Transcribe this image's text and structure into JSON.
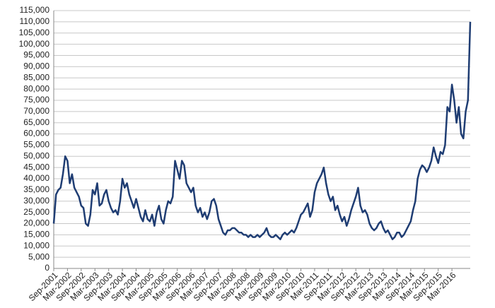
{
  "chart_data": {
    "type": "line",
    "categories": [
      "Sep-2001",
      null,
      null,
      null,
      null,
      null,
      "Mar-2002",
      null,
      null,
      null,
      null,
      null,
      "Sep-2002",
      null,
      null,
      null,
      null,
      null,
      "Mar-2003",
      null,
      null,
      null,
      null,
      null,
      "Sep-2003",
      null,
      null,
      null,
      null,
      null,
      "Mar-2004",
      null,
      null,
      null,
      null,
      null,
      "Sep-2004",
      null,
      null,
      null,
      null,
      null,
      "Mar-2005",
      null,
      null,
      null,
      null,
      null,
      "Sep-2005",
      null,
      null,
      null,
      null,
      null,
      "Mar-2006",
      null,
      null,
      null,
      null,
      null,
      "Sep-2006",
      null,
      null,
      null,
      null,
      null,
      "Mar-2007",
      null,
      null,
      null,
      null,
      null,
      "Sep-2007",
      null,
      null,
      null,
      null,
      null,
      "Mar-2008",
      null,
      null,
      null,
      null,
      null,
      "Sep-2008",
      null,
      null,
      null,
      null,
      null,
      "Mar-2009",
      null,
      null,
      null,
      null,
      null,
      "Sep-2009",
      null,
      null,
      null,
      null,
      null,
      "Mar-2010",
      null,
      null,
      null,
      null,
      null,
      "Sep-2010",
      null,
      null,
      null,
      null,
      null,
      "Mar-2011",
      null,
      null,
      null,
      null,
      null,
      "Sep-2011",
      null,
      null,
      null,
      null,
      null,
      "Mar-2012",
      null,
      null,
      null,
      null,
      null,
      "Sep-2012",
      null,
      null,
      null,
      null,
      null,
      "Mar-2013",
      null,
      null,
      null,
      null,
      null,
      "Sep-2013",
      null,
      null,
      null,
      null,
      null,
      "Mar-2014",
      null,
      null,
      null,
      null,
      null,
      "Sep-2014",
      null,
      null,
      null,
      null,
      null,
      "Mar-2015",
      null,
      null,
      null,
      null,
      null,
      "Sep-2015",
      null,
      null,
      null,
      null,
      null,
      "Mar-2016",
      null,
      null,
      null,
      null,
      null,
      null,
      null,
      null
    ],
    "series": [
      {
        "color": "#1f3d73",
        "values": [
          20000,
          33000,
          35000,
          36000,
          42000,
          50000,
          48000,
          38000,
          42000,
          36000,
          34000,
          32000,
          28000,
          27000,
          20000,
          19000,
          24000,
          35000,
          33000,
          38000,
          28000,
          29000,
          33000,
          35000,
          30000,
          27000,
          25000,
          26000,
          24000,
          30000,
          40000,
          36000,
          38000,
          33000,
          30000,
          27000,
          31000,
          27000,
          23000,
          21000,
          26000,
          22000,
          21000,
          24000,
          19000,
          25000,
          28000,
          22000,
          20000,
          26000,
          30000,
          29000,
          32000,
          48000,
          44000,
          40000,
          48000,
          46000,
          38000,
          36000,
          34000,
          36000,
          28000,
          25000,
          27000,
          23000,
          25000,
          22000,
          25000,
          30000,
          31000,
          28000,
          22000,
          19000,
          16000,
          15000,
          17000,
          17000,
          18000,
          18000,
          17000,
          16000,
          16000,
          15000,
          15000,
          14000,
          15000,
          14000,
          14000,
          15000,
          14000,
          15000,
          16000,
          18000,
          15000,
          14000,
          14000,
          15000,
          14000,
          13000,
          15000,
          16000,
          15000,
          16000,
          17000,
          16000,
          18000,
          21000,
          24000,
          25000,
          27000,
          29000,
          23000,
          26000,
          34000,
          38000,
          40000,
          42000,
          45000,
          38000,
          33000,
          30000,
          32000,
          26000,
          28000,
          24000,
          21000,
          23000,
          19000,
          22000,
          26000,
          29000,
          32000,
          36000,
          28000,
          25000,
          26000,
          24000,
          20000,
          18000,
          17000,
          18000,
          20000,
          21000,
          18000,
          16000,
          17000,
          15000,
          13000,
          14000,
          16000,
          16000,
          14000,
          15000,
          17000,
          19000,
          21000,
          26000,
          30000,
          40000,
          44000,
          46000,
          45000,
          43000,
          45000,
          48000,
          54000,
          50000,
          47000,
          52000,
          51000,
          55000,
          72000,
          70000,
          82000,
          75000,
          65000,
          72000,
          60000,
          58000,
          70000,
          75000,
          110000
        ]
      }
    ],
    "ylim": [
      0,
      115000
    ],
    "yticks": [
      0,
      {
        "value": 5000,
        "label": "5,000"
      },
      {
        "value": 10000,
        "label": "10,000"
      },
      {
        "value": 15000,
        "label": "15,000"
      },
      {
        "value": 20000,
        "label": "20,000"
      },
      {
        "value": 25000,
        "label": "25,000"
      },
      {
        "value": 30000,
        "label": "30,000"
      },
      {
        "value": 35000,
        "label": "35,000"
      },
      {
        "value": 40000,
        "label": "40,000"
      },
      {
        "value": 45000,
        "label": "45,000"
      },
      {
        "value": 50000,
        "label": "50,000"
      },
      {
        "value": 55000,
        "label": "55,000"
      },
      {
        "value": 60000,
        "label": "60,000"
      },
      {
        "value": 65000,
        "label": "65,000"
      },
      {
        "value": 70000,
        "label": "70,000"
      },
      {
        "value": 75000,
        "label": "75,000"
      },
      {
        "value": 80000,
        "label": "80,000"
      },
      {
        "value": 85000,
        "label": "85,000"
      },
      {
        "value": 90000,
        "label": "90,000"
      },
      {
        "value": 95000,
        "label": "95,000"
      },
      {
        "value": 100000,
        "label": "100,000"
      },
      {
        "value": 105000,
        "label": "105,000"
      },
      {
        "value": 110000,
        "label": "110,000"
      },
      {
        "value": 115000,
        "label": "115,000"
      }
    ],
    "grid": true
  }
}
